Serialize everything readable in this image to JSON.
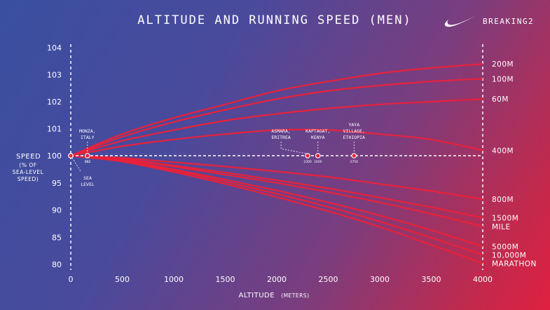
{
  "header": {
    "title": "ALTITUDE AND RUNNING SPEED (MEN)",
    "brand": "BREAKING2",
    "logo_icon": "nike-swoosh-icon"
  },
  "chart_data": {
    "type": "line",
    "title": "ALTITUDE AND RUNNING SPEED (MEN)",
    "xlabel": "ALTITUDE",
    "xlabel_unit": "(METERS)",
    "ylabel": "SPEED",
    "ylabel_sub": [
      "(% OF",
      "SEA-LEVEL",
      "SPEED)"
    ],
    "xlim": [
      0,
      4000
    ],
    "ylim": [
      80,
      104
    ],
    "x_ticks": [
      0,
      500,
      1000,
      1500,
      2000,
      2500,
      3000,
      3500,
      4000
    ],
    "y_ticks": [
      104,
      103,
      102,
      101,
      100,
      95,
      90,
      85,
      80
    ],
    "y_scale_note": "broken scale: 100-104 in 1% steps, 80-100 in 5% steps",
    "baseline": 100,
    "grid": false,
    "series_color": "#e8213a",
    "x": [
      0,
      500,
      1000,
      1500,
      2000,
      2500,
      3000,
      3500,
      4000
    ],
    "series": [
      {
        "name": "200M",
        "values": [
          100,
          100.8,
          101.4,
          101.9,
          102.4,
          102.75,
          103.05,
          103.25,
          103.4
        ]
      },
      {
        "name": "100M",
        "values": [
          100,
          100.7,
          101.25,
          101.7,
          102.1,
          102.4,
          102.6,
          102.75,
          102.85
        ]
      },
      {
        "name": "60M",
        "values": [
          100,
          100.55,
          100.95,
          101.3,
          101.55,
          101.75,
          101.9,
          102.0,
          102.1
        ]
      },
      {
        "name": "400M",
        "values": [
          100,
          100.35,
          100.6,
          100.8,
          100.95,
          100.95,
          100.8,
          100.6,
          100.2
        ]
      },
      {
        "name": "800M",
        "values": [
          100,
          99.6,
          98.8,
          98.0,
          97.1,
          96.1,
          94.8,
          93.5,
          92.0
        ]
      },
      {
        "name": "1500M",
        "values": [
          100,
          99.4,
          98.2,
          96.9,
          95.5,
          94.0,
          92.3,
          90.5,
          88.6
        ]
      },
      {
        "name": "MILE",
        "values": [
          100,
          99.3,
          98.0,
          96.5,
          95.0,
          93.3,
          91.4,
          89.3,
          87.0
        ]
      },
      {
        "name": "5000M",
        "values": [
          100,
          99.1,
          97.5,
          95.6,
          93.6,
          91.4,
          89.0,
          86.3,
          83.3
        ]
      },
      {
        "name": "10,000M",
        "values": [
          100,
          99.0,
          97.3,
          95.2,
          93.0,
          90.6,
          87.9,
          84.9,
          81.8
        ]
      },
      {
        "name": "MARATHON",
        "values": [
          100,
          98.9,
          97.0,
          94.8,
          92.4,
          89.8,
          86.9,
          83.6,
          80.2
        ]
      }
    ],
    "locations": [
      {
        "name": "MONZA, ITALY",
        "lines": [
          "MONZA,",
          "ITALY"
        ],
        "altitude": 162,
        "altitude_label": "162"
      },
      {
        "name": "SEA LEVEL",
        "lines": [
          "SEA",
          "LEVEL"
        ],
        "altitude": 0,
        "altitude_label": ""
      },
      {
        "name": "ASMARA, ERITREA",
        "lines": [
          "ASMARA,",
          "ERITREA"
        ],
        "altitude": 2300,
        "altitude_label": "2300"
      },
      {
        "name": "KAPTAGAT, KENYA",
        "lines": [
          "KAPTAGAT,",
          "KENYA"
        ],
        "altitude": 2400,
        "altitude_label": "2400"
      },
      {
        "name": "YAYA VILLAGE, ETHIOPIA",
        "lines": [
          "YAYA",
          "VILLAGE,",
          "ETHIOPIA"
        ],
        "altitude": 2750,
        "altitude_label": "2750"
      }
    ]
  }
}
